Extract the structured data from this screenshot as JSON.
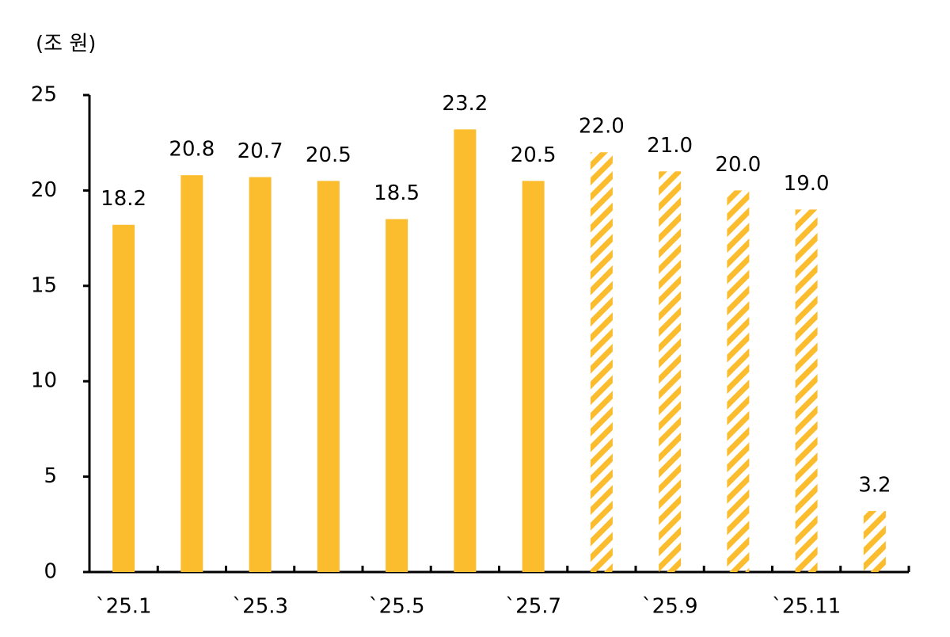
{
  "chart_data": {
    "type": "bar",
    "y_unit": "(조 원)",
    "categories": [
      "`25.1",
      null,
      "`25.3",
      null,
      "`25.5",
      null,
      "`25.7",
      null,
      "`25.9",
      null,
      "`25.11",
      null
    ],
    "values": [
      18.2,
      20.8,
      20.7,
      20.5,
      18.5,
      23.2,
      20.5,
      22.0,
      21.0,
      20.0,
      19.0,
      3.2
    ],
    "value_labels": [
      "18.2",
      "20.8",
      "20.7",
      "20.5",
      "18.5",
      "23.2",
      "20.5",
      "22.0",
      "21.0",
      "20.0",
      "19.0",
      "3.2"
    ],
    "patterns": [
      "solid",
      "solid",
      "solid",
      "solid",
      "solid",
      "solid",
      "solid",
      "hatch",
      "hatch",
      "hatch",
      "hatch",
      "hatch"
    ],
    "color": "#fbbc2d",
    "ylim": [
      0,
      25
    ],
    "yticks": [
      0,
      5,
      10,
      15,
      20,
      25
    ],
    "grid": false
  }
}
